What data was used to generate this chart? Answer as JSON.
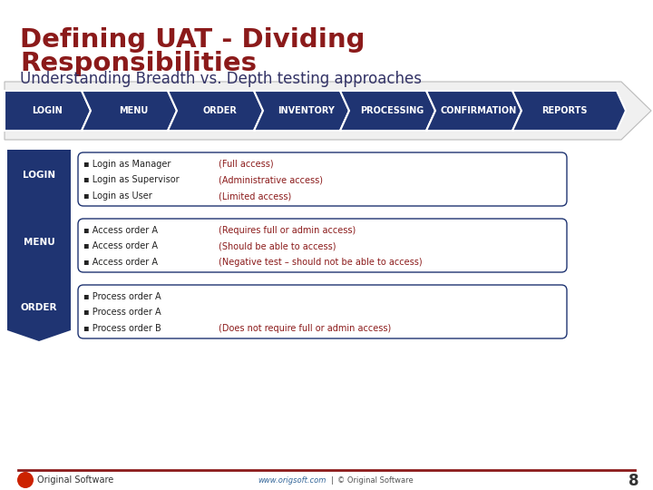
{
  "title_line1": "Defining UAT - Dividing",
  "title_line2": "Responsibilities",
  "subtitle": "Understanding Breadth vs. Depth testing approaches",
  "title_color": "#8B1A1A",
  "subtitle_color": "#333366",
  "bg_color": "#FFFFFF",
  "nav_items": [
    "LOGIN",
    "MENU",
    "ORDER",
    "INVENTORY",
    "PROCESSING",
    "CONFIRMATION",
    "REPORTS"
  ],
  "nav_color": "#1F3472",
  "nav_text_color": "#FFFFFF",
  "rows": [
    {
      "label": "LOGIN",
      "items": [
        {
          "left": "▪ Login as Manager",
          "right": "(Full access)"
        },
        {
          "left": "▪ Login as Supervisor",
          "right": "(Administrative access)"
        },
        {
          "left": "▪ Login as User",
          "right": "(Limited access)"
        }
      ]
    },
    {
      "label": "MENU",
      "items": [
        {
          "left": "▪ Access order A",
          "right": "(Requires full or admin access)"
        },
        {
          "left": "▪ Access order A",
          "right": "(Should be able to access)"
        },
        {
          "left": "▪ Access order A",
          "right": "(Negative test – should not be able to access)"
        }
      ]
    },
    {
      "label": "ORDER",
      "items": [
        {
          "left": "▪ Process order A",
          "right": ""
        },
        {
          "left": "▪ Process order A",
          "right": ""
        },
        {
          "left": "▪ Process order B",
          "right": "(Does not require full or admin access)"
        }
      ]
    }
  ],
  "row_label_color": "#FFFFFF",
  "row_label_bg": "#1F3472",
  "row_box_bg": "#FFFFFF",
  "row_box_border": "#1F3472",
  "row_left_color": "#222222",
  "row_right_color": "#8B1A1A",
  "footer_line_color": "#8B1A1A",
  "footer_text_left": "www.origsoft.com",
  "footer_text_right": "© Original Software",
  "footer_page": "8",
  "logo_color": "#CC2200",
  "logo_text": "Original Software"
}
